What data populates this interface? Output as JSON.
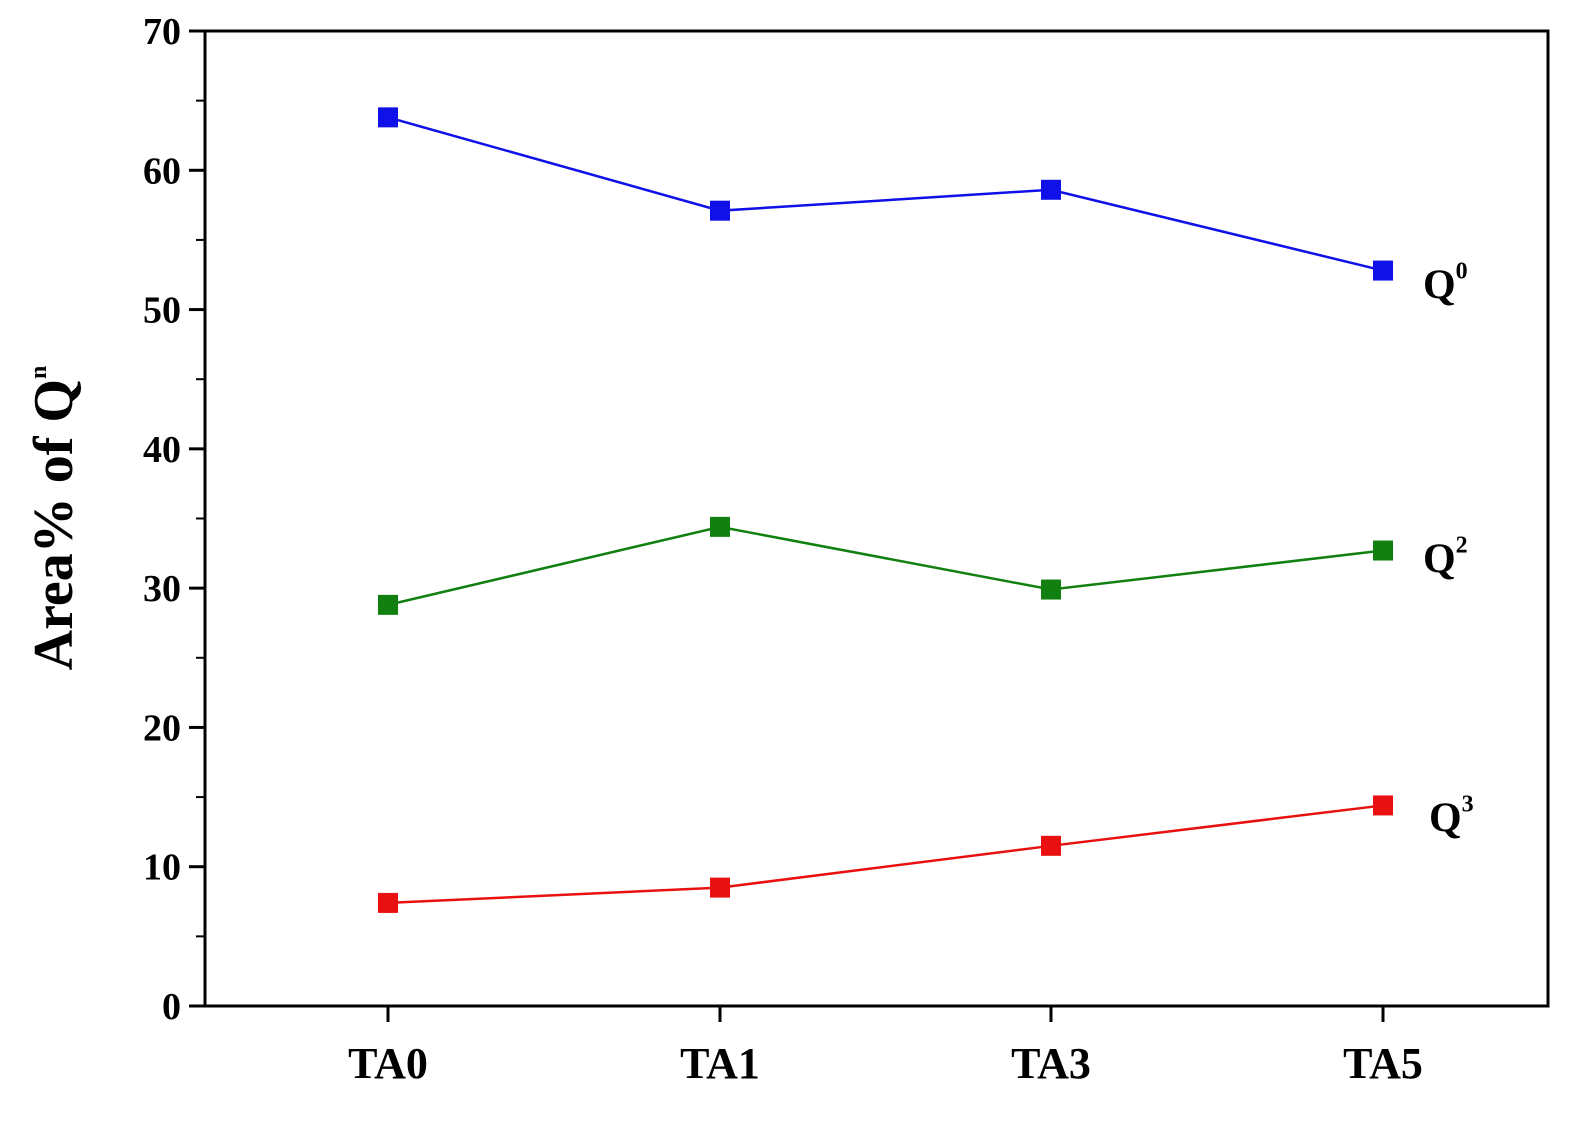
{
  "chart_data": {
    "type": "line",
    "categories": [
      "TA0",
      "TA1",
      "TA3",
      "TA5"
    ],
    "ylabel_main": "Area% of Q",
    "ylabel_sup": "n",
    "ylim": [
      0,
      70
    ],
    "yticks": [
      0,
      10,
      20,
      30,
      40,
      50,
      60,
      70
    ],
    "grid": false,
    "series": [
      {
        "name": "Q",
        "name_sup": "0",
        "color": "#1010e8",
        "values": [
          63.8,
          57.1,
          58.6,
          52.8
        ]
      },
      {
        "name": "Q",
        "name_sup": "2",
        "color": "#118011",
        "values": [
          28.8,
          34.4,
          29.9,
          32.7
        ]
      },
      {
        "name": "Q",
        "name_sup": "3",
        "color": "#e81010",
        "values": [
          7.4,
          8.5,
          11.5,
          14.4
        ]
      }
    ]
  }
}
